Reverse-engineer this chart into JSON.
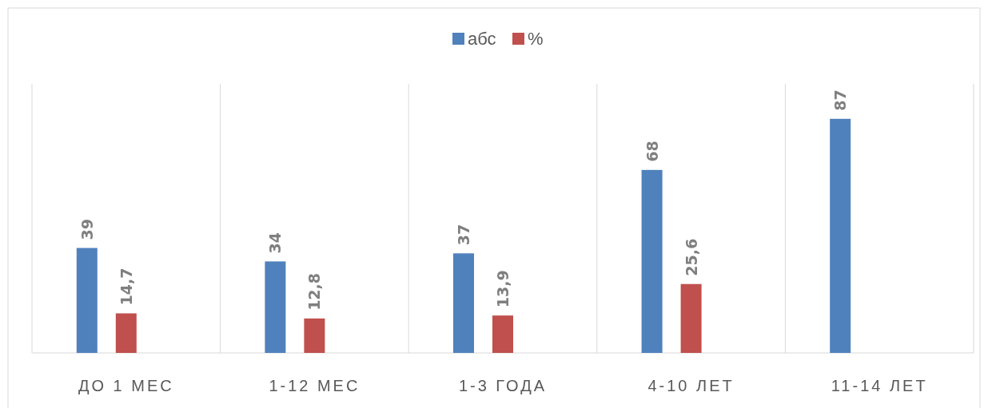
{
  "chart_data": {
    "type": "bar",
    "categories": [
      "ДО 1 МЕС",
      "1-12 МЕС",
      "1-3 ГОДА",
      "4-10 ЛЕТ",
      "11-14 ЛЕТ"
    ],
    "series": [
      {
        "name": "абс",
        "color": "#4f81bd",
        "values": [
          39,
          34,
          37,
          68,
          87
        ],
        "value_labels": [
          "39",
          "34",
          "37",
          "68",
          "87"
        ]
      },
      {
        "name": "%",
        "color": "#c0504d",
        "values": [
          14.7,
          12.8,
          13.9,
          25.6,
          null
        ],
        "value_labels": [
          "14,7",
          "12,8",
          "13,9",
          "25,6",
          null
        ]
      }
    ],
    "ylim": [
      0,
      100
    ],
    "grid": "x",
    "legend": "top"
  }
}
